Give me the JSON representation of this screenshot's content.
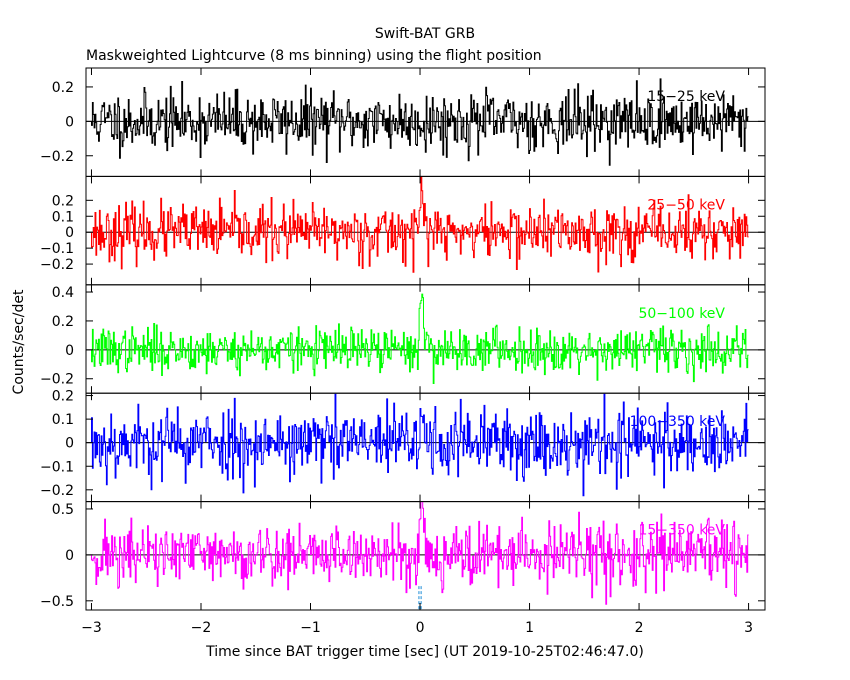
{
  "chart_data": {
    "type": "line",
    "title": "Swift-BAT GRB",
    "subtitle": "Maskweighted Lightcurve (8 ms binning) using the flight position",
    "xlabel": "Time since BAT trigger time [sec] (UT 2019-10-25T02:46:47.0)",
    "ylabel": "Counts/sec/det",
    "xlim": [
      -3.05,
      3.15
    ],
    "x_ticks": [
      -3,
      -2,
      -1,
      0,
      1,
      2,
      3
    ],
    "x_tick_labels": [
      "−3",
      "−2",
      "−1",
      "0",
      "1",
      "2",
      "3"
    ],
    "bin_width_sec": 0.008,
    "trigger_marker_x": [
      -0.01,
      0.01
    ],
    "panels": [
      {
        "name": "15-25 keV",
        "label": "15−25 keV",
        "color": "#000000",
        "ylim": [
          -0.32,
          0.31
        ],
        "y_ticks": [
          -0.2,
          0,
          0.2
        ],
        "y_tick_labels": [
          "−0.2",
          "0",
          "0.2"
        ],
        "noise_sigma": 0.085,
        "peak": 0.0,
        "seed": 11
      },
      {
        "name": "25-50 keV",
        "label": "25−50 keV",
        "color": "#ff0000",
        "ylim": [
          -0.33,
          0.35
        ],
        "y_ticks": [
          -0.2,
          -0.1,
          0,
          0.1,
          0.2
        ],
        "y_tick_labels": [
          "−0.2",
          "−0.1",
          "0",
          "0.1",
          "0.2"
        ],
        "noise_sigma": 0.085,
        "peak": 0.28,
        "seed": 23
      },
      {
        "name": "50-100 keV",
        "label": "50−100 keV",
        "color": "#00ff00",
        "ylim": [
          -0.3,
          0.45
        ],
        "y_ticks": [
          -0.2,
          0,
          0.2,
          0.4
        ],
        "y_tick_labels": [
          "−0.2",
          "0",
          "0.2",
          "0.4"
        ],
        "noise_sigma": 0.075,
        "peak": 0.38,
        "seed": 37
      },
      {
        "name": "100-350 keV",
        "label": "100−350 keV",
        "color": "#0000ff",
        "ylim": [
          -0.25,
          0.21
        ],
        "y_ticks": [
          -0.2,
          -0.1,
          0,
          0.1,
          0.2
        ],
        "y_tick_labels": [
          "−0.2",
          "−0.1",
          "0",
          "0.1",
          "0.2"
        ],
        "noise_sigma": 0.075,
        "peak": 0.1,
        "seed": 53
      },
      {
        "name": "15-350 keV",
        "label": "15−350 keV",
        "color": "#ff00ff",
        "ylim": [
          -0.6,
          0.58
        ],
        "y_ticks": [
          -0.5,
          0,
          0.5
        ],
        "y_tick_labels": [
          "−0.5",
          "0",
          "0.5"
        ],
        "noise_sigma": 0.17,
        "peak": 0.58,
        "seed": 71
      }
    ],
    "trigger_marker_color": "#1a8bd6",
    "grid": false
  }
}
